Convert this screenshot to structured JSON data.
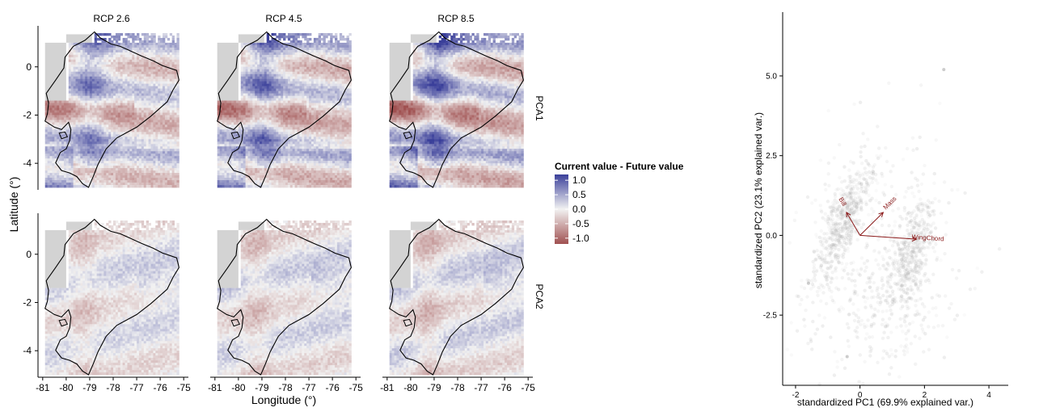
{
  "chart_data": [
    {
      "type": "heatmap",
      "panels": {
        "columns": [
          "RCP 2.6",
          "RCP 4.5",
          "RCP 8.5"
        ],
        "rows": [
          "PCA1",
          "PCA2"
        ]
      },
      "xlabel": "Longitude (°)",
      "ylabel": "Latitude (°)",
      "xlim": [
        -81.2,
        -74.8
      ],
      "ylim": [
        -5.1,
        1.7
      ],
      "x_ticks": [
        -81,
        -80,
        -79,
        -78,
        -77,
        -76,
        -75
      ],
      "x_tick_labels": [
        "-81",
        "-80",
        "-79",
        "-78",
        "-77",
        "-76",
        "-75"
      ],
      "y_ticks": [
        0,
        -2,
        -4
      ],
      "y_tick_labels": [
        "0",
        "-2",
        "-4"
      ],
      "legend": {
        "title": "Current value - Future value",
        "breaks": [
          1.0,
          0.5,
          0.0,
          -0.5,
          -1.0
        ],
        "labels": [
          "1.0",
          "0.5",
          "0.0",
          "-0.5",
          "-1.0"
        ],
        "low_color": "#a05050",
        "mid_color": "#f2f2f2",
        "high_color": "#3a3f9a",
        "na_color": "#d3d3d3",
        "placement": "right"
      },
      "grid": false
    },
    {
      "type": "scatter",
      "xlabel": "standardized PC1 (69.9% explained var.)",
      "ylabel": "standardized PC2 (23.1% explained var.)",
      "xlim": [
        -2.4,
        4.6
      ],
      "ylim": [
        -4.7,
        7.0
      ],
      "x_ticks": [
        -2,
        0,
        2,
        4
      ],
      "x_tick_labels": [
        "-2",
        "0",
        "2",
        "4"
      ],
      "y_ticks": [
        -2.5,
        0,
        2.5,
        5
      ],
      "y_tick_labels": [
        "-2.5",
        "0.0",
        "2.5",
        "5.0"
      ],
      "point_color": "#9a9a9a",
      "arrow_color": "#8b1a1a",
      "loadings": [
        {
          "name": "Mass",
          "x": 0.72,
          "y": 0.72
        },
        {
          "name": "WingChord",
          "x": 1.75,
          "y": -0.12
        },
        {
          "name": "Bill",
          "x": -0.42,
          "y": 0.72
        }
      ],
      "point_clusters": [
        {
          "cx": -0.6,
          "cy": 0.3,
          "sx": 0.28,
          "sy": 1.05,
          "n": 520,
          "tilt": 0.35
        },
        {
          "cx": 1.6,
          "cy": -0.6,
          "sx": 0.32,
          "sy": 0.95,
          "n": 430,
          "tilt": 0.25
        },
        {
          "cx": 0.7,
          "cy": -0.3,
          "sx": 1.1,
          "sy": 1.6,
          "n": 360,
          "tilt": 0.0
        },
        {
          "cx": 0.5,
          "cy": -2.6,
          "sx": 1.2,
          "sy": 0.9,
          "n": 160,
          "tilt": 0.0
        }
      ],
      "grid": false
    }
  ]
}
